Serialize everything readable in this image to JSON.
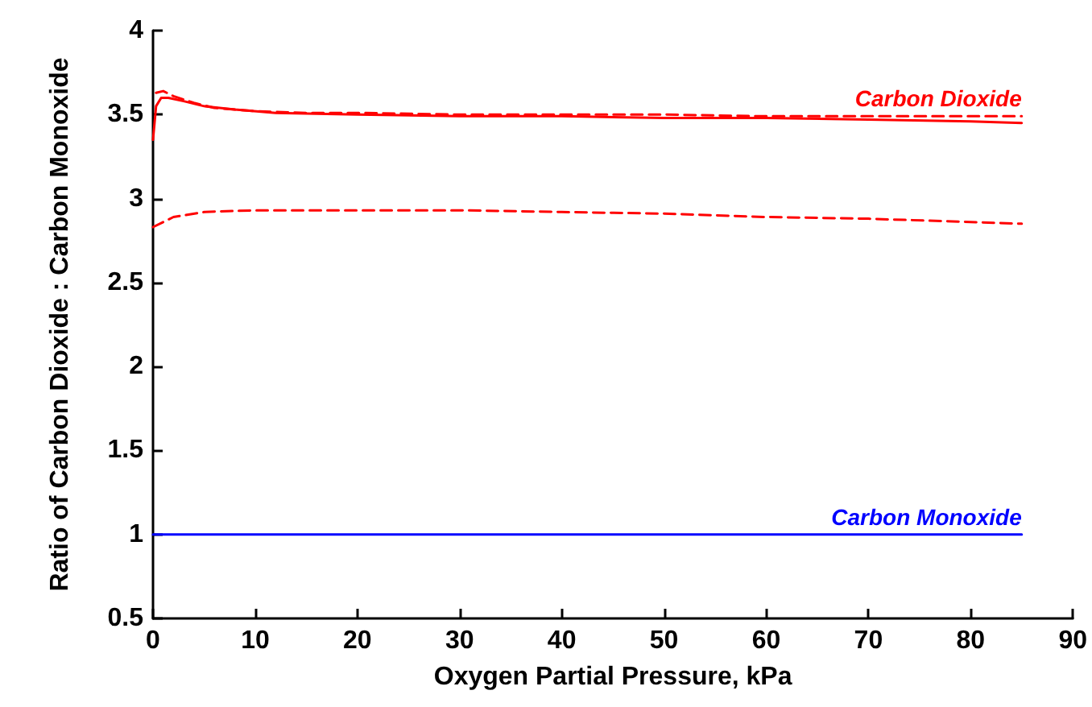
{
  "chart_data": {
    "type": "line",
    "xlabel": "Oxygen Partial Pressure, kPa",
    "ylabel": "Ratio of Carbon Dioxide : Carbon Monoxide",
    "xlim": [
      0,
      90
    ],
    "xticks": [
      0,
      10,
      20,
      30,
      40,
      50,
      60,
      70,
      80,
      90
    ],
    "ylim": [
      0.5,
      4
    ],
    "yticks": [
      0.5,
      1,
      1.5,
      2,
      2.5,
      3,
      3.5,
      4
    ],
    "grid": false,
    "legend": false,
    "marker": "none",
    "series": [
      {
        "color": "#ff0000",
        "line_style": "solid",
        "x": [
          0,
          0.3,
          0.8,
          1.5,
          3,
          5,
          8,
          12,
          20,
          30,
          40,
          50,
          60,
          70,
          80,
          85
        ],
        "values": [
          3.35,
          3.55,
          3.6,
          3.6,
          3.58,
          3.55,
          3.53,
          3.51,
          3.5,
          3.49,
          3.49,
          3.48,
          3.48,
          3.47,
          3.46,
          3.45
        ]
      },
      {
        "name": "Carbon Dioxide",
        "color": "#ff0000",
        "line_style": "dashed",
        "x": [
          0.3,
          1,
          2,
          4,
          6,
          10,
          15,
          20,
          30,
          40,
          50,
          60,
          70,
          80,
          85
        ],
        "values": [
          3.63,
          3.64,
          3.61,
          3.57,
          3.54,
          3.52,
          3.51,
          3.51,
          3.5,
          3.5,
          3.5,
          3.49,
          3.49,
          3.49,
          3.49
        ]
      },
      {
        "color": "#ff0000",
        "line_style": "dashed",
        "x": [
          0,
          2,
          5,
          10,
          20,
          30,
          40,
          50,
          60,
          70,
          80,
          85
        ],
        "values": [
          2.83,
          2.89,
          2.92,
          2.93,
          2.93,
          2.93,
          2.92,
          2.91,
          2.89,
          2.88,
          2.86,
          2.85
        ]
      },
      {
        "name": "Carbon Monoxide",
        "color": "#0000ff",
        "line_style": "solid",
        "x": [
          0,
          85
        ],
        "values": [
          1,
          1
        ]
      }
    ]
  }
}
